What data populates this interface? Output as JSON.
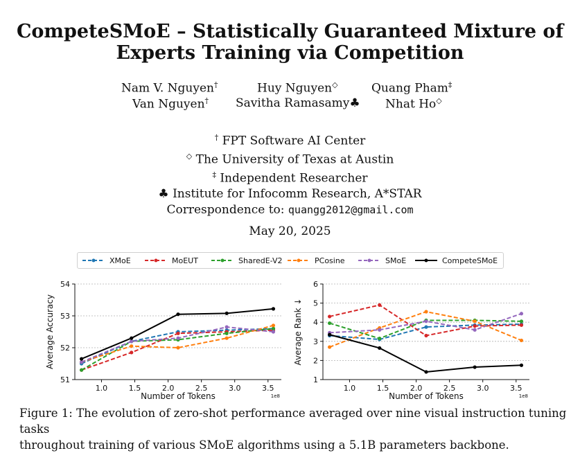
{
  "title_line1": "CompeteSMoE – Statistically Guaranteed Mixture of",
  "title_line2": "Experts Training via Competition",
  "authors": [
    {
      "name": "Nam V. Nguyen",
      "mark": "†"
    },
    {
      "name": "Huy Nguyen",
      "mark": "◇"
    },
    {
      "name": "Quang Pham",
      "mark": "‡"
    },
    {
      "name": "Van Nguyen",
      "mark": "†"
    },
    {
      "name": "Savitha Ramasamy",
      "mark": "♣"
    },
    {
      "name": "Nhat Ho",
      "mark": "◇"
    }
  ],
  "affiliations": [
    {
      "mark": "†",
      "text": "FPT Software AI Center"
    },
    {
      "mark": "◇",
      "text": "The University of Texas at Austin"
    },
    {
      "mark": "‡",
      "text": "Independent Researcher"
    },
    {
      "mark": "♣",
      "text": "Institute for Infocomm Research, A*STAR"
    }
  ],
  "correspondence_label": "Correspondence to:",
  "correspondence_email": "quangg2012@gmail.com",
  "date": "May 20, 2025",
  "caption_line1": "Figure 1: The evolution of zero-shot performance averaged over nine visual instruction tuning tasks",
  "caption_line2": "throughout training of various SMoE algorithms using a 5.1B parameters backbone.",
  "legend": [
    {
      "name": "XMoE",
      "color": "#1f77b4",
      "dashed": true
    },
    {
      "name": "MoEUT",
      "color": "#d62728",
      "dashed": true
    },
    {
      "name": "SharedE-V2",
      "color": "#2ca02c",
      "dashed": true
    },
    {
      "name": "PCosine",
      "color": "#ff7f0e",
      "dashed": true
    },
    {
      "name": "SMoE",
      "color": "#9467bd",
      "dashed": true
    },
    {
      "name": "CompeteSMoE",
      "color": "#000000",
      "dashed": false
    }
  ],
  "chart_data": [
    {
      "type": "line",
      "xlabel": "Number of Tokens",
      "ylabel": "Average Accuracy",
      "x_scale_note": "1e8",
      "xlim": [
        0.6,
        3.7
      ],
      "ylim": [
        51,
        54
      ],
      "xticks": [
        "1.0",
        "1.5",
        "2.0",
        "2.5",
        "3.0",
        "3.5"
      ],
      "xtick_values": [
        1.0,
        1.5,
        2.0,
        2.5,
        3.0,
        3.5
      ],
      "yticks": [
        "51",
        "52",
        "53",
        "54"
      ],
      "ytick_values": [
        51,
        52,
        53,
        54
      ],
      "grid": "horizontal dashed",
      "x": [
        0.7,
        1.45,
        2.15,
        2.88,
        3.58
      ],
      "series": [
        {
          "name": "XMoE",
          "values": [
            51.5,
            52.2,
            52.5,
            52.55,
            52.6
          ]
        },
        {
          "name": "MoEUT",
          "values": [
            51.3,
            51.85,
            52.45,
            52.5,
            52.55
          ]
        },
        {
          "name": "SharedE-V2",
          "values": [
            51.3,
            52.2,
            52.25,
            52.45,
            52.6
          ]
        },
        {
          "name": "PCosine",
          "values": [
            51.55,
            52.05,
            52.0,
            52.3,
            52.7
          ]
        },
        {
          "name": "SMoE",
          "values": [
            51.55,
            52.2,
            52.3,
            52.65,
            52.5
          ]
        },
        {
          "name": "CompeteSMoE",
          "values": [
            51.65,
            52.3,
            53.05,
            53.08,
            53.22
          ]
        }
      ]
    },
    {
      "type": "line",
      "xlabel": "Number of Tokens",
      "ylabel": "Average Rank ↓",
      "x_scale_note": "1e8",
      "xlim": [
        0.6,
        3.7
      ],
      "ylim": [
        1,
        6
      ],
      "xticks": [
        "1.0",
        "1.5",
        "2.0",
        "2.5",
        "3.0",
        "3.5"
      ],
      "xtick_values": [
        1.0,
        1.5,
        2.0,
        2.5,
        3.0,
        3.5
      ],
      "yticks": [
        "1",
        "2",
        "3",
        "4",
        "5",
        "6"
      ],
      "ytick_values": [
        1,
        2,
        3,
        4,
        5,
        6
      ],
      "grid": "horizontal dashed",
      "x": [
        0.7,
        1.45,
        2.15,
        2.88,
        3.58
      ],
      "series": [
        {
          "name": "XMoE",
          "values": [
            3.3,
            3.1,
            3.75,
            3.85,
            3.9
          ]
        },
        {
          "name": "MoEUT",
          "values": [
            4.3,
            4.9,
            3.3,
            3.8,
            3.85
          ]
        },
        {
          "name": "SharedE-V2",
          "values": [
            3.95,
            3.15,
            4.1,
            4.1,
            4.05
          ]
        },
        {
          "name": "PCosine",
          "values": [
            2.7,
            3.7,
            4.55,
            4.05,
            3.05
          ]
        },
        {
          "name": "SMoE",
          "values": [
            3.45,
            3.6,
            4.05,
            3.6,
            4.45
          ]
        },
        {
          "name": "CompeteSMoE",
          "values": [
            3.35,
            2.65,
            1.4,
            1.65,
            1.75
          ]
        }
      ]
    }
  ]
}
